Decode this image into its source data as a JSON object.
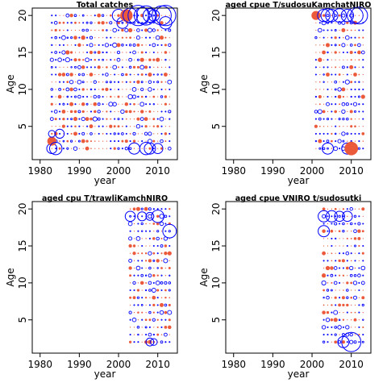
{
  "colors": {
    "positive": "#ec5a3c",
    "negative": "#0000ff",
    "axis": "#000000",
    "background": "#ffffff"
  },
  "chart_data": [
    {
      "type": "scatter",
      "subtype": "bubble",
      "title": "Total catches",
      "xlabel": "year",
      "ylabel": "Age",
      "xlim": [
        1978,
        2015
      ],
      "ylim": [
        0.5,
        21
      ],
      "xticks": [
        1980,
        1990,
        2000,
        2010
      ],
      "yticks": [
        5,
        10,
        15,
        20
      ],
      "years": [
        1983,
        2013
      ],
      "ages": [
        2,
        20
      ],
      "cells": [
        {
          "x": 1983,
          "y": 2,
          "r": 0.45,
          "s": "neg"
        },
        {
          "x": 1983,
          "y": 3,
          "r": 0.4,
          "s": "pos"
        },
        {
          "x": 1983,
          "y": 4,
          "r": 0.3,
          "s": "neg"
        },
        {
          "x": 1984,
          "y": 2,
          "r": 0.55,
          "s": "neg"
        },
        {
          "x": 1985,
          "y": 4,
          "r": 0.4,
          "s": "neg"
        },
        {
          "x": 2000,
          "y": 20,
          "r": 0.55,
          "s": "neg"
        },
        {
          "x": 2001,
          "y": 19,
          "r": 0.5,
          "s": "neg"
        },
        {
          "x": 2002,
          "y": 20,
          "r": 0.55,
          "s": "pos"
        },
        {
          "x": 2003,
          "y": 20,
          "r": 0.65,
          "s": "neg"
        },
        {
          "x": 2005,
          "y": 20,
          "r": 0.9,
          "s": "neg"
        },
        {
          "x": 2006,
          "y": 20,
          "r": 0.7,
          "s": "neg"
        },
        {
          "x": 2007,
          "y": 20,
          "r": 0.85,
          "s": "neg"
        },
        {
          "x": 2008,
          "y": 20,
          "r": 0.6,
          "s": "neg"
        },
        {
          "x": 2009,
          "y": 20,
          "r": 0.5,
          "s": "neg"
        },
        {
          "x": 2011,
          "y": 20,
          "r": 0.85,
          "s": "neg"
        },
        {
          "x": 2012,
          "y": 20,
          "r": 0.9,
          "s": "neg"
        },
        {
          "x": 2012,
          "y": 19,
          "r": 0.55,
          "s": "neg"
        },
        {
          "x": 2004,
          "y": 2,
          "r": 0.5,
          "s": "neg"
        },
        {
          "x": 2007,
          "y": 2,
          "r": 0.55,
          "s": "neg"
        },
        {
          "x": 2008,
          "y": 2,
          "r": 0.5,
          "s": "neg"
        },
        {
          "x": 2010,
          "y": 2,
          "r": 0.45,
          "s": "neg"
        }
      ]
    },
    {
      "type": "scatter",
      "subtype": "bubble",
      "title": "aged    cpue    T/sudosuKamchatNIRO",
      "xlabel": "year",
      "ylabel": "Age",
      "xlim": [
        1978,
        2015
      ],
      "ylim": [
        0.5,
        21
      ],
      "xticks": [
        1980,
        1990,
        2000,
        2010
      ],
      "yticks": [
        5,
        10,
        15,
        20
      ],
      "years": [
        2001,
        2013
      ],
      "ages": [
        2,
        20
      ],
      "cells": [
        {
          "x": 2001,
          "y": 20,
          "r": 0.4,
          "s": "pos"
        },
        {
          "x": 2003,
          "y": 20,
          "r": 0.55,
          "s": "neg"
        },
        {
          "x": 2004,
          "y": 20,
          "r": 0.6,
          "s": "neg"
        },
        {
          "x": 2005,
          "y": 20,
          "r": 0.55,
          "s": "neg"
        },
        {
          "x": 2007,
          "y": 20,
          "r": 0.6,
          "s": "neg"
        },
        {
          "x": 2009,
          "y": 20,
          "r": 0.55,
          "s": "neg"
        },
        {
          "x": 2011,
          "y": 20,
          "r": 0.7,
          "s": "neg"
        },
        {
          "x": 2012,
          "y": 20,
          "r": 0.75,
          "s": "neg"
        },
        {
          "x": 2004,
          "y": 2,
          "r": 0.5,
          "s": "neg"
        },
        {
          "x": 2009,
          "y": 2,
          "r": 0.5,
          "s": "neg"
        },
        {
          "x": 2010,
          "y": 2,
          "r": 0.6,
          "s": "pos"
        }
      ]
    },
    {
      "type": "scatter",
      "subtype": "bubble",
      "title": "aged    cpu    T/trawliKamchNIRO",
      "xlabel": "year",
      "ylabel": "Age",
      "xlim": [
        1978,
        2015
      ],
      "ylim": [
        0.5,
        21
      ],
      "xticks": [
        1980,
        1990,
        2000,
        2010
      ],
      "yticks": [
        5,
        10,
        15,
        20
      ],
      "years": [
        2003,
        2013
      ],
      "ages": [
        2,
        20
      ],
      "cells": [
        {
          "x": 2003,
          "y": 19,
          "r": 0.45,
          "s": "neg"
        },
        {
          "x": 2006,
          "y": 19,
          "r": 0.4,
          "s": "neg"
        },
        {
          "x": 2008,
          "y": 19,
          "r": 0.35,
          "s": "neg"
        },
        {
          "x": 2010,
          "y": 19,
          "r": 0.55,
          "s": "neg"
        },
        {
          "x": 2013,
          "y": 17,
          "r": 0.6,
          "s": "neg"
        },
        {
          "x": 2008,
          "y": 2,
          "r": 0.35,
          "s": "neg"
        },
        {
          "x": 2009,
          "y": 2,
          "r": 0.3,
          "s": "neg"
        }
      ]
    },
    {
      "type": "scatter",
      "subtype": "bubble",
      "title": "aged    cpue    VNIRO   t/sudosutki",
      "xlabel": "year",
      "ylabel": "Age",
      "xlim": [
        1978,
        2015
      ],
      "ylim": [
        0.5,
        21
      ],
      "xticks": [
        1980,
        1990,
        2000,
        2010
      ],
      "yticks": [
        5,
        10,
        15,
        20
      ],
      "years": [
        2003,
        2013
      ],
      "ages": [
        2,
        20
      ],
      "cells": [
        {
          "x": 2003,
          "y": 19,
          "r": 0.5,
          "s": "neg"
        },
        {
          "x": 2005,
          "y": 19,
          "r": 0.5,
          "s": "neg"
        },
        {
          "x": 2007,
          "y": 19,
          "r": 0.45,
          "s": "neg"
        },
        {
          "x": 2009,
          "y": 19,
          "r": 0.45,
          "s": "neg"
        },
        {
          "x": 2003,
          "y": 17,
          "r": 0.5,
          "s": "neg"
        },
        {
          "x": 2010,
          "y": 2,
          "r": 0.85,
          "s": "neg"
        },
        {
          "x": 2008,
          "y": 2,
          "r": 0.5,
          "s": "neg"
        }
      ]
    }
  ]
}
